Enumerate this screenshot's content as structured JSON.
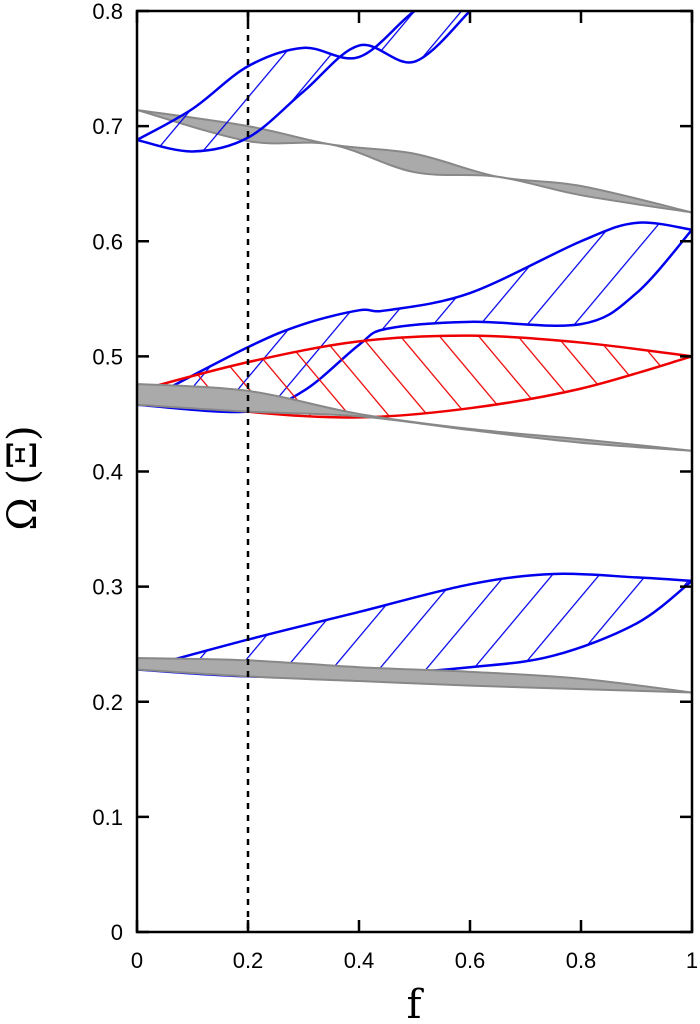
{
  "chart_data": {
    "type": "area",
    "title": "",
    "xlabel": "f",
    "ylabel": "Ω (Ξ)",
    "xlim": [
      0,
      1
    ],
    "ylim": [
      0,
      0.8
    ],
    "xticks": [
      "0",
      "0.2",
      "0.4",
      "0.6",
      "0.8",
      "1"
    ],
    "yticks": [
      "0",
      "0.1",
      "0.2",
      "0.3",
      "0.4",
      "0.5",
      "0.6",
      "0.7",
      "0.8"
    ],
    "grid": false,
    "legend": null,
    "vline": {
      "x": 0.2,
      "style": "dotted",
      "color": "#000000"
    },
    "series": [
      {
        "name": "gray-band-1",
        "color": "#999999",
        "fill": "solid",
        "x": [
          0,
          0.2,
          0.35,
          0.5,
          0.65,
          0.8,
          1
        ],
        "upper": [
          0.714,
          0.7,
          0.684,
          0.676,
          0.656,
          0.648,
          0.625
        ],
        "lower": [
          0.714,
          0.687,
          0.684,
          0.66,
          0.656,
          0.64,
          0.625
        ]
      },
      {
        "name": "blue-band-upper",
        "color": "#0000ee",
        "fill": "hatch-forward",
        "x": [
          0,
          0.1,
          0.2,
          0.3,
          0.4,
          0.5,
          0.6
        ],
        "upper": [
          0.688,
          0.715,
          0.752,
          0.768,
          0.76,
          0.8,
          0.83
        ],
        "lower": [
          0.688,
          0.678,
          0.69,
          0.73,
          0.77,
          0.756,
          0.8
        ]
      },
      {
        "name": "blue-band-middle",
        "color": "#0000ee",
        "fill": "hatch-forward",
        "x": [
          0,
          0.2,
          0.3,
          0.4,
          0.45,
          0.6,
          0.8,
          0.9,
          1
        ],
        "upper": [
          0.458,
          0.508,
          0.528,
          0.54,
          0.54,
          0.555,
          0.6,
          0.616,
          0.61
        ],
        "lower": [
          0.458,
          0.452,
          0.47,
          0.51,
          0.524,
          0.53,
          0.528,
          0.555,
          0.61
        ]
      },
      {
        "name": "red-band",
        "color": "#ee0000",
        "fill": "hatch-backward",
        "x": [
          0,
          0.2,
          0.4,
          0.6,
          0.8,
          1
        ],
        "upper": [
          0.47,
          0.495,
          0.513,
          0.518,
          0.512,
          0.5
        ],
        "lower": [
          0.466,
          0.452,
          0.447,
          0.455,
          0.472,
          0.5
        ]
      },
      {
        "name": "gray-band-2",
        "color": "#999999",
        "fill": "solid",
        "x": [
          0,
          0.2,
          0.4,
          0.6,
          0.8,
          1
        ],
        "upper": [
          0.476,
          0.47,
          0.45,
          0.437,
          0.428,
          0.418
        ],
        "lower": [
          0.458,
          0.452,
          0.448,
          0.436,
          0.425,
          0.418
        ]
      },
      {
        "name": "blue-band-lower",
        "color": "#0000ee",
        "fill": "hatch-forward",
        "x": [
          0,
          0.2,
          0.4,
          0.6,
          0.75,
          0.9,
          1
        ],
        "upper": [
          0.228,
          0.254,
          0.278,
          0.302,
          0.311,
          0.308,
          0.305
        ],
        "lower": [
          0.228,
          0.222,
          0.223,
          0.23,
          0.24,
          0.268,
          0.305
        ]
      },
      {
        "name": "gray-band-3",
        "color": "#999999",
        "fill": "solid",
        "x": [
          0,
          0.2,
          0.4,
          0.6,
          0.8,
          1
        ],
        "upper": [
          0.238,
          0.236,
          0.23,
          0.226,
          0.22,
          0.208
        ],
        "lower": [
          0.228,
          0.222,
          0.218,
          0.214,
          0.211,
          0.208
        ]
      }
    ]
  }
}
